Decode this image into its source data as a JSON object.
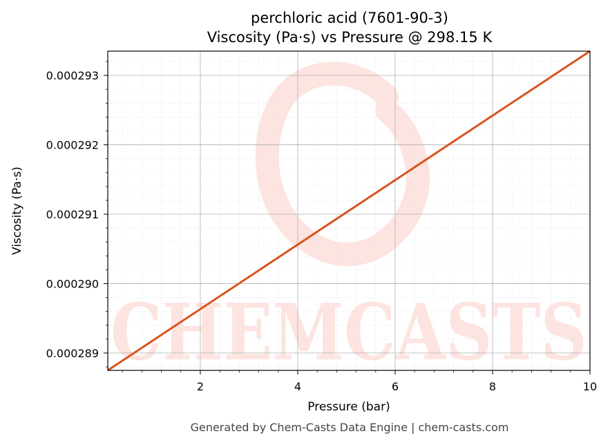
{
  "chart_data": {
    "type": "line",
    "title": "perchloric acid (7601-90-3)",
    "subtitle": "Viscosity (Pa·s) vs Pressure @ 298.15 K",
    "xlabel": "Pressure (bar)",
    "ylabel": "Viscosity (Pa·s)",
    "xlim": [
      0.1,
      10
    ],
    "ylim": [
      0.00028875,
      0.00029335
    ],
    "x_ticks": [
      2,
      4,
      6,
      8,
      10
    ],
    "y_ticks": [
      0.000289,
      0.00029,
      0.000291,
      0.000292,
      0.000293
    ],
    "x_tick_labels": [
      "2",
      "4",
      "6",
      "8",
      "10"
    ],
    "y_tick_labels": [
      "0.000289",
      "0.000290",
      "0.000291",
      "0.000292",
      "0.000293"
    ],
    "grid": true,
    "series": [
      {
        "color": "#d9531e",
        "x": [
          0.1,
          10
        ],
        "y": [
          0.00028875,
          0.00029335
        ]
      }
    ]
  },
  "watermark": {
    "text": "CHEMCASTS",
    "color": "#fde4e0"
  },
  "footer": "Generated by Chem-Casts Data Engine | chem-casts.com"
}
